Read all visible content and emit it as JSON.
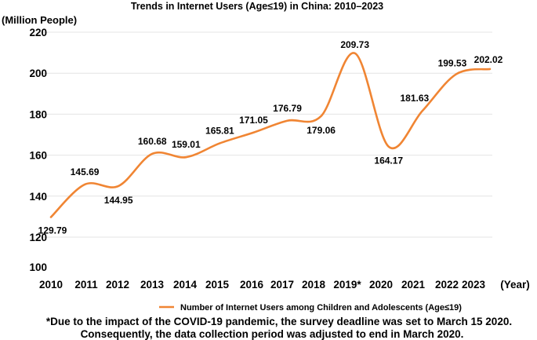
{
  "chart_data": {
    "type": "line",
    "title": "Trends in Internet Users (Age≤19) in China: 2010–2023",
    "ylabel": "(Million People)",
    "xlabel": "(Year)",
    "ylim": [
      100,
      220
    ],
    "yticks": [
      100,
      120,
      140,
      160,
      180,
      200,
      220
    ],
    "gridlines_drawn": [
      120,
      140,
      160,
      180,
      200,
      220
    ],
    "grid": true,
    "legend_position": "bottom",
    "categories": [
      "2010",
      "2011",
      "2012",
      "2013",
      "2014",
      "2015",
      "2016",
      "2017",
      "2018",
      "2019*",
      "2020",
      "2021",
      "2022",
      "2023"
    ],
    "series": [
      {
        "name": "Number of Internet Users among Children and Adolescents (Age≤19)",
        "color": "#F08533",
        "values": [
          129.79,
          145.69,
          144.95,
          160.68,
          159.01,
          165.81,
          171.05,
          176.79,
          179.06,
          209.73,
          164.17,
          181.63,
          199.53,
          202.02
        ],
        "label_placement": [
          "below",
          "above",
          "below",
          "above",
          "above",
          "above",
          "above",
          "above",
          "below",
          "above",
          "below",
          "above-left",
          "above",
          "above"
        ]
      }
    ],
    "footnote": [
      "*Due to the impact of the COVID-19 pandemic, the survey deadline was set to March 15 2020.",
      "Consequently, the data collection period was adjusted to end in March 2020."
    ]
  }
}
